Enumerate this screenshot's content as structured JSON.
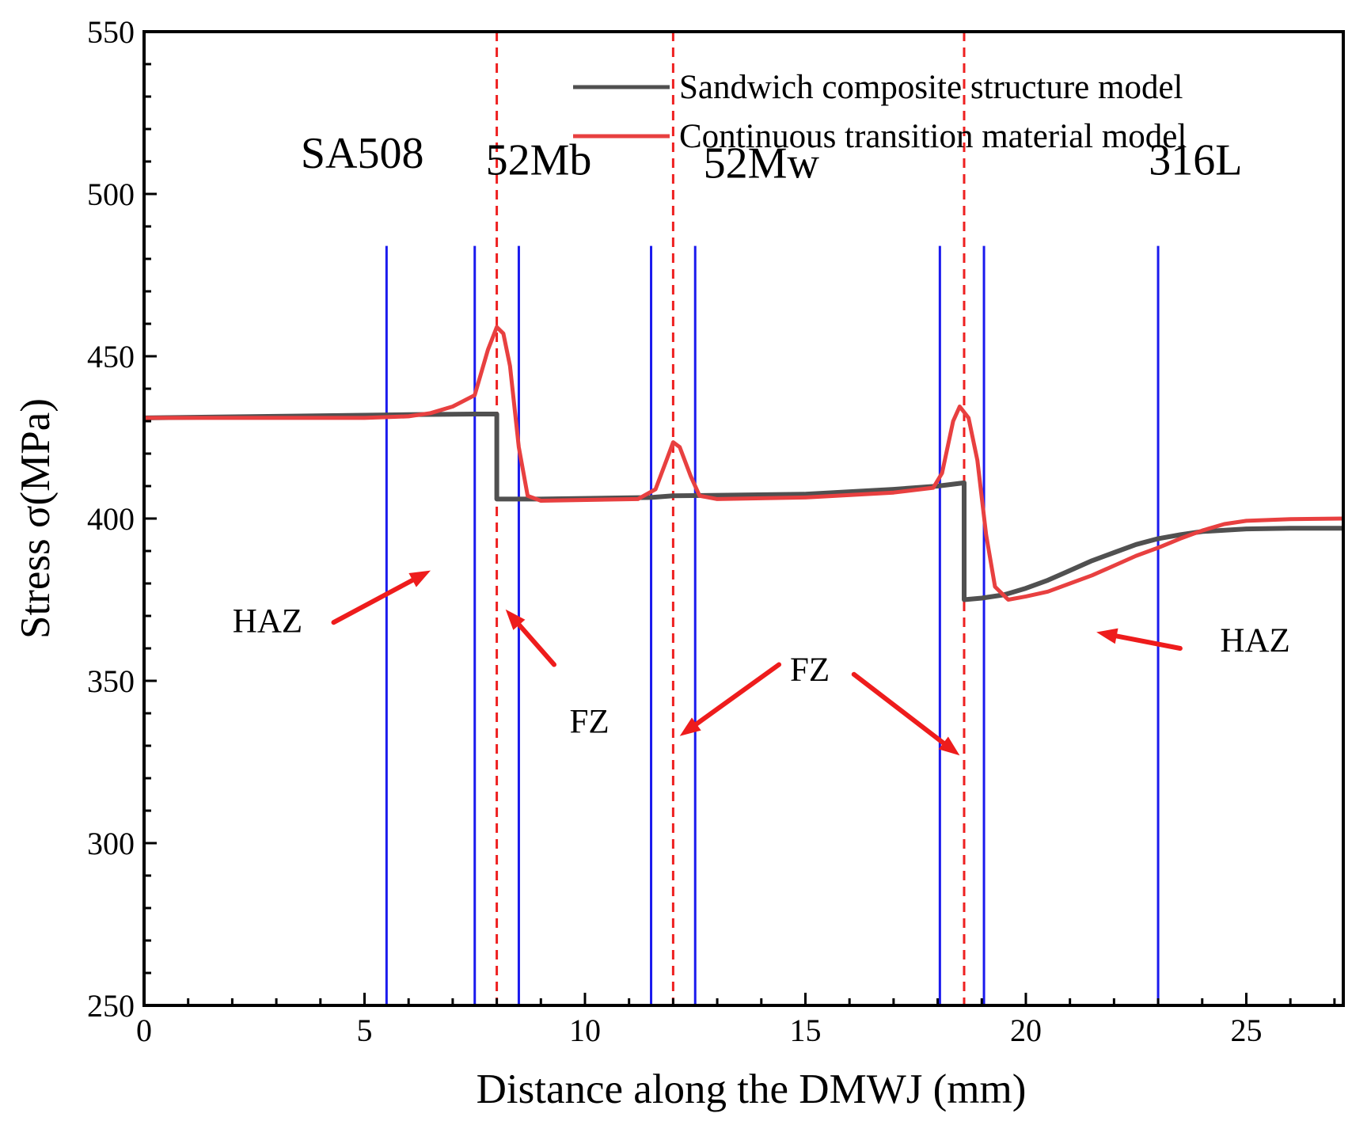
{
  "chart_data": {
    "type": "line",
    "title": "",
    "xlabel": "Distance along the DMWJ (mm)",
    "ylabel": "Stress σ(MPa)",
    "xlim": [
      0,
      27.2
    ],
    "ylim": [
      250,
      550
    ],
    "x_ticks": [
      0,
      5,
      10,
      15,
      20,
      25
    ],
    "y_ticks": [
      250,
      300,
      350,
      400,
      450,
      500,
      550
    ],
    "legend_position": "top-right",
    "series": [
      {
        "name": "Sandwich composite structure model",
        "color": "#505050",
        "points": [
          [
            0,
            431
          ],
          [
            3,
            431.5
          ],
          [
            6,
            432
          ],
          [
            7.5,
            432.2
          ],
          [
            8.0,
            432.2
          ],
          [
            8.0,
            406
          ],
          [
            9,
            406
          ],
          [
            11.5,
            406.5
          ],
          [
            12,
            407
          ],
          [
            15,
            407.5
          ],
          [
            17,
            409
          ],
          [
            18.0,
            410
          ],
          [
            18.6,
            411
          ],
          [
            18.6,
            375
          ],
          [
            19,
            375.5
          ],
          [
            19.5,
            376.5
          ],
          [
            20,
            378.5
          ],
          [
            20.5,
            381
          ],
          [
            21,
            384
          ],
          [
            21.5,
            387
          ],
          [
            22,
            389.5
          ],
          [
            22.5,
            392
          ],
          [
            23,
            393.8
          ],
          [
            23.5,
            395
          ],
          [
            24,
            396
          ],
          [
            25,
            396.8
          ],
          [
            26,
            397
          ],
          [
            27.2,
            397
          ]
        ]
      },
      {
        "name": "Continuous transition material model",
        "color": "#e84040",
        "points": [
          [
            0,
            431
          ],
          [
            5,
            431
          ],
          [
            6,
            431.5
          ],
          [
            6.5,
            432.5
          ],
          [
            7,
            434.5
          ],
          [
            7.5,
            438
          ],
          [
            7.8,
            452
          ],
          [
            8.0,
            459
          ],
          [
            8.15,
            457
          ],
          [
            8.3,
            447
          ],
          [
            8.5,
            422
          ],
          [
            8.7,
            407
          ],
          [
            9,
            405.5
          ],
          [
            11.2,
            406
          ],
          [
            11.6,
            409
          ],
          [
            11.85,
            418
          ],
          [
            12.0,
            423.5
          ],
          [
            12.15,
            422
          ],
          [
            12.4,
            413
          ],
          [
            12.6,
            407
          ],
          [
            13,
            406
          ],
          [
            15,
            406.5
          ],
          [
            17,
            408
          ],
          [
            17.9,
            409.5
          ],
          [
            18.1,
            414
          ],
          [
            18.35,
            430
          ],
          [
            18.5,
            434.5
          ],
          [
            18.7,
            431
          ],
          [
            18.9,
            418
          ],
          [
            19.1,
            395
          ],
          [
            19.3,
            379
          ],
          [
            19.6,
            375
          ],
          [
            20,
            376
          ],
          [
            20.5,
            377.5
          ],
          [
            21,
            380
          ],
          [
            21.5,
            382.5
          ],
          [
            22,
            385.5
          ],
          [
            22.5,
            388.5
          ],
          [
            23,
            391
          ],
          [
            23.5,
            393.8
          ],
          [
            24,
            396.3
          ],
          [
            24.5,
            398.3
          ],
          [
            25,
            399.3
          ],
          [
            26,
            399.8
          ],
          [
            27.2,
            400
          ]
        ]
      }
    ],
    "blue_lines_x": [
      5.5,
      7.5,
      8.5,
      11.5,
      12.5,
      18.05,
      19.05,
      23.0
    ],
    "red_dashed_lines_x": [
      8.0,
      12.0,
      18.6
    ],
    "region_labels": [
      {
        "text": "SA508",
        "x": 4.95,
        "y": 508
      },
      {
        "text": "52Mb",
        "x": 8.95,
        "y": 506
      },
      {
        "text": "52Mw",
        "x": 14.0,
        "y": 505
      },
      {
        "text": "316L",
        "x": 23.85,
        "y": 506
      }
    ],
    "annotations": [
      {
        "text": "HAZ",
        "x": 2.8,
        "y": 365,
        "arrow_from": [
          4.3,
          368
        ],
        "arrow_to": [
          6.5,
          384
        ]
      },
      {
        "text": "FZ",
        "x": 10.1,
        "y": 334,
        "arrow_from": [
          9.3,
          355
        ],
        "arrow_to": [
          8.2,
          372
        ]
      },
      {
        "text": "FZ",
        "x": 15.1,
        "y": 350,
        "arrow_from": [
          14.4,
          355
        ],
        "arrow_to": [
          12.15,
          333
        ]
      },
      {
        "arrow_from": [
          16.1,
          352
        ],
        "arrow_to": [
          18.5,
          327
        ]
      },
      {
        "text": "HAZ",
        "x": 25.2,
        "y": 359,
        "arrow_from": [
          23.5,
          360
        ],
        "arrow_to": [
          21.6,
          365
        ]
      }
    ]
  }
}
